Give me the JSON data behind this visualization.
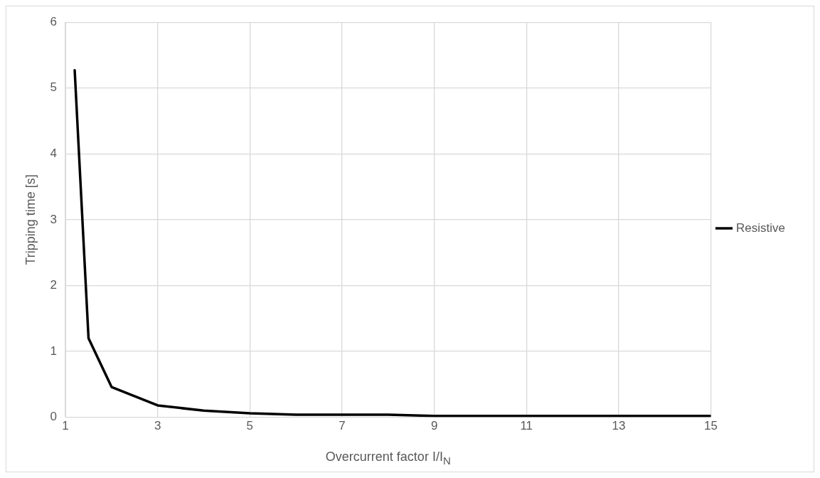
{
  "chart_data": {
    "type": "line",
    "xlabel": "Overcurrent factor I/I$_{N}$",
    "ylabel": "Tripping time [s]",
    "x": [
      1.2,
      1.5,
      2,
      3,
      4,
      5,
      6,
      7,
      8,
      9,
      10,
      11,
      12,
      13,
      14,
      15
    ],
    "series": [
      {
        "name": "Resistive",
        "color": "#000000",
        "values": [
          5.27,
          1.2,
          0.46,
          0.18,
          0.1,
          0.06,
          0.04,
          0.04,
          0.04,
          0.02,
          0.02,
          0.02,
          0.02,
          0.02,
          0.02,
          0.02
        ]
      }
    ],
    "xlim": [
      1,
      15
    ],
    "xticks": [
      1,
      3,
      5,
      7,
      9,
      11,
      13,
      15
    ],
    "ylim": [
      0,
      6
    ],
    "yticks": [
      0,
      1,
      2,
      3,
      4,
      5,
      6
    ],
    "grid": true,
    "legend": "right",
    "marker": "none",
    "line_style": "solid"
  }
}
